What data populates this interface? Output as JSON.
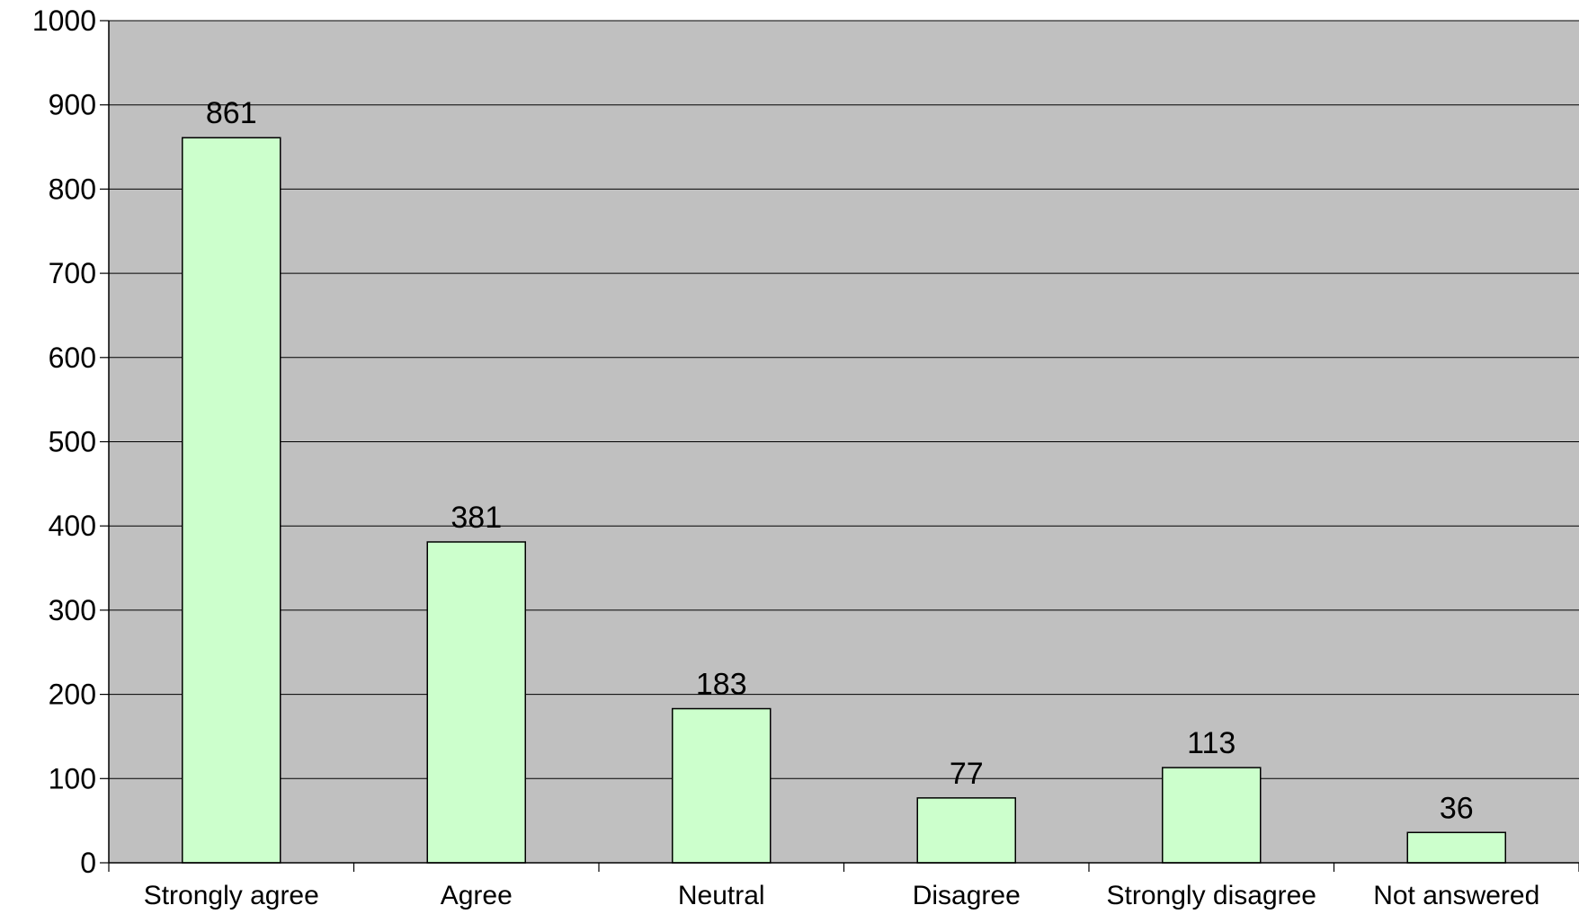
{
  "chart_data": {
    "type": "bar",
    "title": "",
    "xlabel": "",
    "ylabel": "",
    "categories": [
      "Strongly agree",
      "Agree",
      "Neutral",
      "Disagree",
      "Strongly disagree",
      "Not answered"
    ],
    "values": [
      861,
      381,
      183,
      77,
      113,
      36
    ],
    "data_labels": [
      "861",
      "381",
      "183",
      "77",
      "113",
      "36"
    ],
    "ylim": [
      0,
      1000
    ],
    "yticks": [
      0,
      100,
      200,
      300,
      400,
      500,
      600,
      700,
      800,
      900,
      1000
    ],
    "ytick_labels": [
      "0",
      "100",
      "200",
      "300",
      "400",
      "500",
      "600",
      "700",
      "800",
      "900",
      "1000"
    ],
    "grid": true,
    "legend": "none",
    "colors": {
      "plot_background": "#c0c0c0",
      "bar_fill": "#ccffcc",
      "bar_stroke": "#000000",
      "grid_line": "#000000",
      "text": "#000000"
    }
  }
}
